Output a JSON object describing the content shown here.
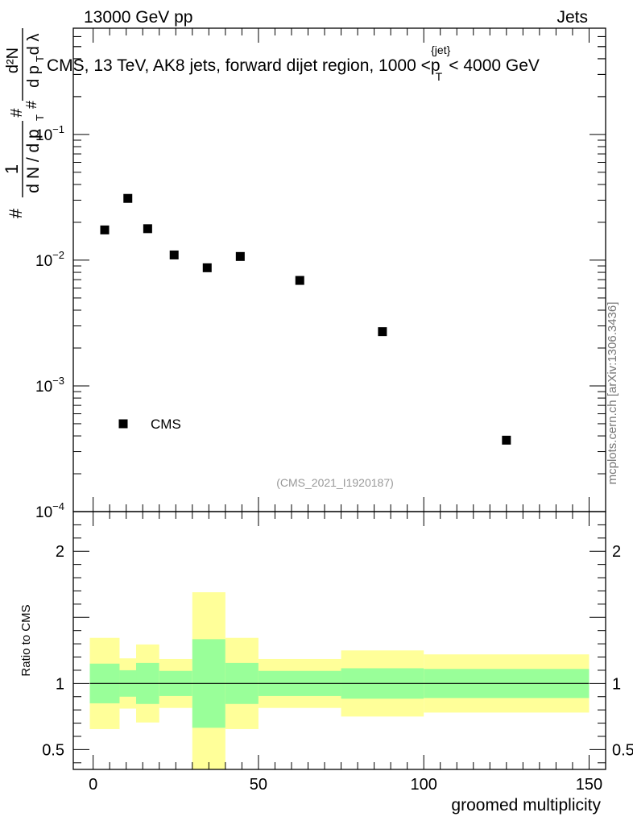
{
  "header": {
    "left": "13000 GeV pp",
    "right": "Jets"
  },
  "watermark": "mcplots.cern.ch [arXiv:1306.3436]",
  "analysis_id": "(CMS_2021_I1920187)",
  "colors": {
    "band_outer": "#ffff99",
    "band_inner": "#99ff99",
    "marker": "#000000",
    "analysis_id": "#999999"
  },
  "chart_data": [
    {
      "type": "scatter",
      "title": "CMS, 13 TeV, AK8 jets, forward dijet region, 1000 <p_T^{jet}< 4000 GeV",
      "title_parts": {
        "main": "CMS, 13 TeV, AK8 jets, forward dijet region, 1000 <p",
        "sub": "T",
        "sup": "{jet}",
        "tail": "< 4000 GeV"
      },
      "ylabel_parts": {
        "hash": "#",
        "one": "1",
        "dN": "d N / d p",
        "T": "T",
        "d2N": "d²N",
        "dptdl": "d p",
        "dl": "d λ"
      },
      "yscale": "log",
      "ylim": [
        0.0001,
        0.7
      ],
      "xlim": [
        -6,
        155
      ],
      "y_tick_labels": [
        {
          "base": "10",
          "exp": "−1",
          "value": 0.1
        },
        {
          "base": "10",
          "exp": "−2",
          "value": 0.01
        },
        {
          "base": "10",
          "exp": "−3",
          "value": 0.001
        },
        {
          "base": "10",
          "exp": "−4",
          "value": 0.0001
        }
      ],
      "series": [
        {
          "name": "CMS",
          "x": [
            3.5,
            10.5,
            16.5,
            24.5,
            34.5,
            44.5,
            62.5,
            87.5,
            125
          ],
          "y": [
            0.0174,
            0.031,
            0.0178,
            0.011,
            0.0087,
            0.0107,
            0.0069,
            0.0027,
            0.00037
          ]
        }
      ],
      "legend": {
        "label": "CMS",
        "position": "bottom-left"
      }
    },
    {
      "type": "area",
      "ylabel": "Ratio to CMS",
      "xlabel": "groomed multiplicity",
      "ylim": [
        0.35,
        2.3
      ],
      "xlim": [
        -6,
        155
      ],
      "y_ticks": [
        {
          "label": "2",
          "value": 2
        },
        {
          "label": "1",
          "value": 1
        },
        {
          "label": "0.5",
          "value": 0.5
        }
      ],
      "x_ticks": [
        {
          "label": "0",
          "value": 0
        },
        {
          "label": "50",
          "value": 50
        },
        {
          "label": "100",
          "value": 100
        },
        {
          "label": "150",
          "value": 150
        }
      ],
      "reference_line": 1,
      "bins": [
        {
          "x0": -1,
          "x1": 8,
          "outer": [
            0.655,
            1.345
          ],
          "inner": [
            0.85,
            1.15
          ]
        },
        {
          "x0": 8,
          "x1": 13,
          "outer": [
            0.81,
            1.19
          ],
          "inner": [
            0.9,
            1.1
          ]
        },
        {
          "x0": 13,
          "x1": 20,
          "outer": [
            0.705,
            1.295
          ],
          "inner": [
            0.845,
            1.155
          ]
        },
        {
          "x0": 20,
          "x1": 30,
          "outer": [
            0.815,
            1.185
          ],
          "inner": [
            0.905,
            1.095
          ]
        },
        {
          "x0": 30,
          "x1": 40,
          "outer": [
            0.35,
            1.69
          ],
          "inner": [
            0.665,
            1.335
          ]
        },
        {
          "x0": 40,
          "x1": 50,
          "outer": [
            0.655,
            1.345
          ],
          "inner": [
            0.845,
            1.155
          ]
        },
        {
          "x0": 50,
          "x1": 75,
          "outer": [
            0.815,
            1.185
          ],
          "inner": [
            0.905,
            1.095
          ]
        },
        {
          "x0": 75,
          "x1": 100,
          "outer": [
            0.75,
            1.25
          ],
          "inner": [
            0.885,
            1.115
          ]
        },
        {
          "x0": 100,
          "x1": 150,
          "outer": [
            0.78,
            1.22
          ],
          "inner": [
            0.89,
            1.11
          ]
        }
      ]
    }
  ]
}
